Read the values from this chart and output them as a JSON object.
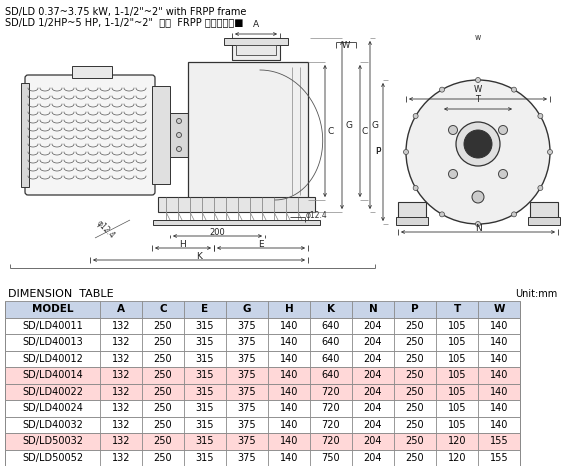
{
  "title_line1": "SD/LD 0.37~3.75 kW, 1-1/2\"~2\" with FRPP frame",
  "title_line2": "SD/LD 1/2HP~5 HP, 1-1/2\"~2\"  搭配  FRPP 脚座尺尿图■",
  "dim_table_title": "DIMENSION  TABLE",
  "unit_label": "Unit:mm",
  "headers": [
    "MODEL",
    "A",
    "C",
    "E",
    "G",
    "H",
    "K",
    "N",
    "P",
    "T",
    "W"
  ],
  "rows": [
    [
      "SD/LD40011",
      "132",
      "250",
      "315",
      "375",
      "140",
      "640",
      "204",
      "250",
      "105",
      "140"
    ],
    [
      "SD/LD40013",
      "132",
      "250",
      "315",
      "375",
      "140",
      "640",
      "204",
      "250",
      "105",
      "140"
    ],
    [
      "SD/LD40012",
      "132",
      "250",
      "315",
      "375",
      "140",
      "640",
      "204",
      "250",
      "105",
      "140"
    ],
    [
      "SD/LD40014",
      "132",
      "250",
      "315",
      "375",
      "140",
      "640",
      "204",
      "250",
      "105",
      "140"
    ],
    [
      "SD/LD40022",
      "132",
      "250",
      "315",
      "375",
      "140",
      "720",
      "204",
      "250",
      "105",
      "140"
    ],
    [
      "SD/LD40024",
      "132",
      "250",
      "315",
      "375",
      "140",
      "720",
      "204",
      "250",
      "105",
      "140"
    ],
    [
      "SD/LD40032",
      "132",
      "250",
      "315",
      "375",
      "140",
      "720",
      "204",
      "250",
      "105",
      "140"
    ],
    [
      "SD/LD50032",
      "132",
      "250",
      "315",
      "375",
      "140",
      "720",
      "204",
      "250",
      "120",
      "155"
    ],
    [
      "SD/LD50052",
      "132",
      "250",
      "315",
      "375",
      "140",
      "750",
      "204",
      "250",
      "120",
      "155"
    ]
  ],
  "row_colors": [
    "#ffffff",
    "#ffffff",
    "#ffffff",
    "#ffd8d8",
    "#ffd8d8",
    "#ffffff",
    "#ffffff",
    "#ffd8d8",
    "#ffffff"
  ],
  "header_bg": "#c8d4e8",
  "border_color": "#888888",
  "bg_color": "#ffffff"
}
